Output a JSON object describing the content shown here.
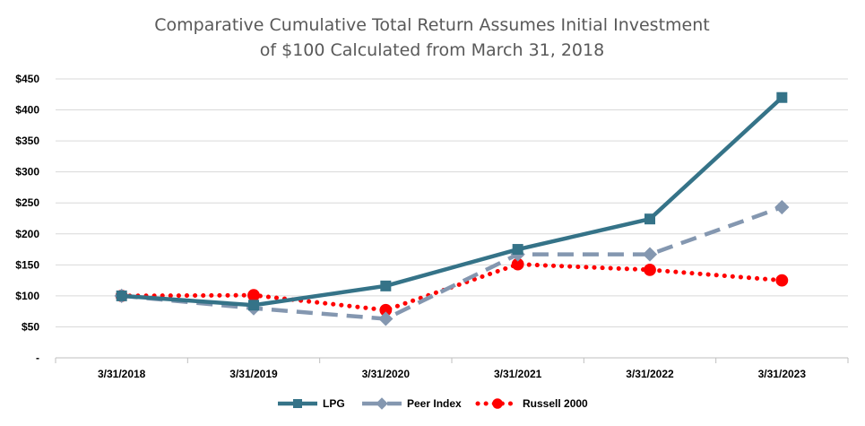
{
  "chart_data": {
    "type": "line",
    "title": "Comparative Cumulative Total Return Assumes Initial Investment",
    "subtitle": "of $100 Calculated from March 31, 2018",
    "categories": [
      "3/31/2018",
      "3/31/2019",
      "3/31/2020",
      "3/31/2021",
      "3/31/2022",
      "3/31/2023"
    ],
    "y_ticks": [
      "-",
      "$50",
      "$100",
      "$150",
      "$200",
      "$250",
      "$300",
      "$350",
      "$400",
      "$450"
    ],
    "ylim": [
      0,
      450
    ],
    "grid": true,
    "legend_position": "bottom",
    "series": [
      {
        "name": "LPG",
        "values": [
          100,
          85,
          116,
          175,
          224,
          420
        ],
        "color": "#357388",
        "style": "solid",
        "marker": "square"
      },
      {
        "name": "Peer Index",
        "values": [
          100,
          80,
          63,
          167,
          167,
          243
        ],
        "color": "#8497b0",
        "style": "dashed",
        "marker": "diamond"
      },
      {
        "name": "Russell 2000",
        "values": [
          100,
          101,
          77,
          151,
          142,
          125
        ],
        "color": "#ff0000",
        "style": "dotted",
        "marker": "circle"
      }
    ]
  }
}
